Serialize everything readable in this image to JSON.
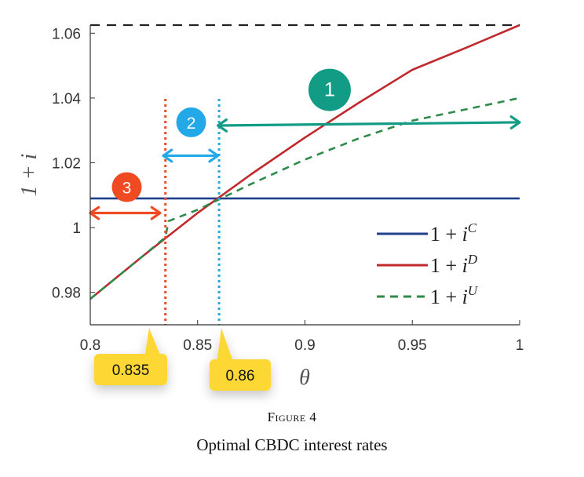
{
  "chart_data": {
    "type": "line",
    "xlabel": "θ",
    "ylabel": "1 + i",
    "xlim": [
      0.8,
      1.0
    ],
    "ylim": [
      0.97,
      1.0625
    ],
    "x_ticks": [
      "0.8",
      "0.85",
      "0.9",
      "0.95",
      "1"
    ],
    "y_ticks": [
      "0.98",
      "1",
      "1.02",
      "1.04",
      "1.06"
    ],
    "y_tick_values": [
      0.98,
      1.0,
      1.02,
      1.04,
      1.06
    ],
    "x_tick_values": [
      0.8,
      0.85,
      0.9,
      0.95,
      1.0
    ],
    "grid": false,
    "legend_position": "bottom-right",
    "series": [
      {
        "name": "1+i^C",
        "label_base": "1 + ",
        "label_sup": "C",
        "color": "#1f3f8c",
        "style": "solid",
        "x": [
          0.8,
          1.0
        ],
        "y": [
          1.009,
          1.009
        ]
      },
      {
        "name": "1+i^D",
        "label_base": "1 + ",
        "label_sup": "D",
        "color": "#c0282d",
        "style": "solid",
        "x": [
          0.8,
          0.825,
          0.85,
          0.875,
          0.9,
          0.925,
          0.95,
          0.975,
          1.0
        ],
        "y": [
          0.978,
          0.9915,
          1.0045,
          1.0165,
          1.0278,
          1.0385,
          1.0487,
          1.0555,
          1.0625
        ]
      },
      {
        "name": "1+i^U",
        "label_base": "1 + ",
        "label_sup": "U",
        "color": "#2e8b4a",
        "style": "dashed",
        "x": [
          0.8,
          0.825,
          0.835,
          0.8365,
          0.85,
          0.875,
          0.9,
          0.925,
          0.95,
          0.975,
          1.0
        ],
        "y": [
          0.978,
          0.9915,
          0.997,
          1.002,
          1.0055,
          1.0135,
          1.021,
          1.0275,
          1.033,
          1.0365,
          1.04
        ]
      },
      {
        "name": "upper-dashed",
        "color": "#222222",
        "style": "dashed",
        "x": [
          0.8,
          1.0
        ],
        "y": [
          1.0625,
          1.0625
        ]
      }
    ],
    "thresholds": [
      {
        "x": 0.835,
        "label": "0.835",
        "color": "#f04a23"
      },
      {
        "x": 0.86,
        "label": "0.86",
        "color": "#23a9e8"
      }
    ],
    "regions": [
      {
        "label": "1",
        "color": "#129c85",
        "x_from": 0.8595,
        "x_to": 1.0,
        "y_from": 1.0315,
        "y_to": 1.0325,
        "badge_x": 0.9115,
        "badge_y": 1.0425
      },
      {
        "label": "2",
        "color": "#23a9e8",
        "x_from": 0.834,
        "x_to": 0.8595,
        "y_from": 1.0222,
        "y_to": 1.0222,
        "badge_x": 0.847,
        "badge_y": 1.0325
      },
      {
        "label": "3",
        "color": "#f04a23",
        "x_from": 0.8,
        "x_to": 0.8325,
        "y_from": 1.0045,
        "y_to": 1.0045,
        "badge_x": 0.817,
        "badge_y": 1.0125
      }
    ]
  },
  "caption": {
    "figure_label": "Figure 4",
    "title": "Optimal CBDC interest rates"
  }
}
